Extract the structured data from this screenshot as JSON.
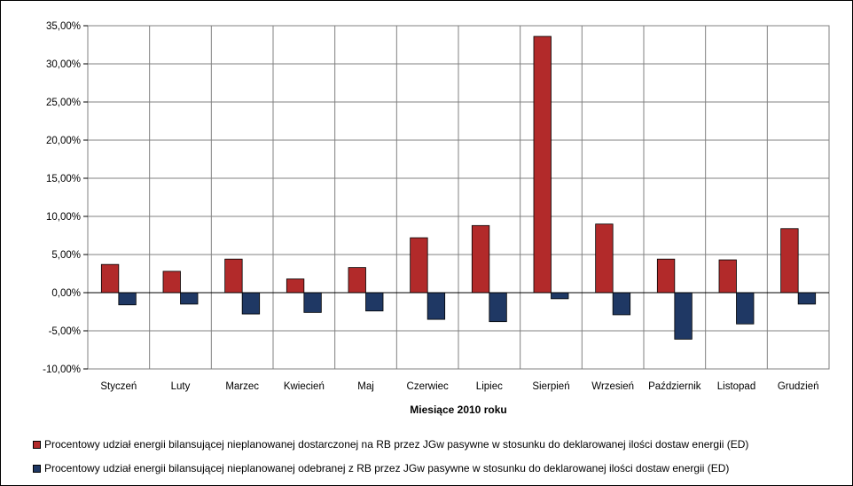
{
  "chart_data": {
    "type": "bar",
    "title": "",
    "xlabel": "Miesiące 2010  roku",
    "ylabel": "",
    "ylim": [
      -10,
      35
    ],
    "y_ticks": [
      "-10,00%",
      "-5,00%",
      "0,00%",
      "5,00%",
      "10,00%",
      "15,00%",
      "20,00%",
      "25,00%",
      "30,00%",
      "35,00%"
    ],
    "categories": [
      "Styczeń",
      "Luty",
      "Marzec",
      "Kwiecień",
      "Maj",
      "Czerwiec",
      "Lipiec",
      "Sierpień",
      "Wrzesień",
      "Październik",
      "Listopad",
      "Grudzień"
    ],
    "series": [
      {
        "name": "Procentowy udział energii  bilansującej nieplanowanej  dostarczonej na RB przez JGw pasywne w stosunku do deklarowanej ilości dostaw energii (ED)",
        "color": "#B22A2A",
        "values": [
          3.7,
          2.8,
          4.4,
          1.8,
          3.3,
          7.2,
          8.8,
          33.6,
          9.0,
          4.4,
          4.3,
          8.4
        ]
      },
      {
        "name": "Procentowy udział energii  bilansującej nieplanowanej  odebranej z RB przez JGw pasywne w stosunku do deklarowanej ilości dostaw energii (ED)",
        "color": "#1F3864",
        "values": [
          -1.6,
          -1.5,
          -2.8,
          -2.6,
          -2.4,
          -3.5,
          -3.8,
          -0.8,
          -2.9,
          -6.1,
          -4.1,
          -1.5
        ]
      }
    ],
    "grid": true,
    "legend_position": "bottom"
  }
}
